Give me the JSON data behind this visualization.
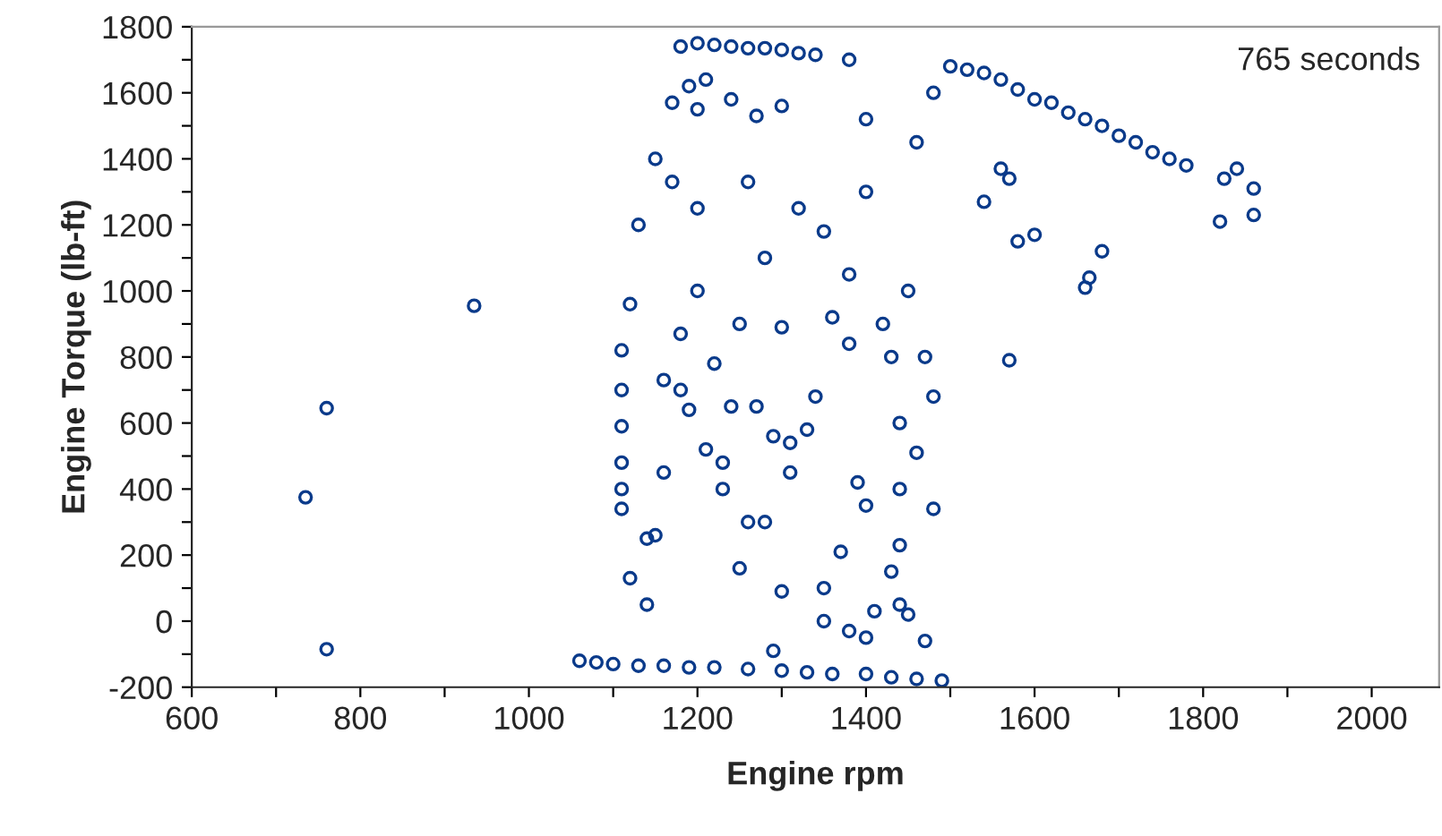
{
  "chart_data": {
    "type": "scatter",
    "xlabel": "Engine rpm",
    "ylabel": "Engine Torque (lb-ft)",
    "annotations": [
      "765 seconds"
    ],
    "xlim": [
      600,
      2080
    ],
    "ylim": [
      -200,
      1800
    ],
    "marker": "circle",
    "grid": false,
    "xticks": [
      600,
      {
        "value": 700,
        "label": null
      },
      800,
      {
        "value": 900,
        "label": null
      },
      1000,
      {
        "value": 1100,
        "label": null
      },
      1200,
      {
        "value": 1300,
        "label": null
      },
      1400,
      {
        "value": 1500,
        "label": null
      },
      1600,
      {
        "value": 1700,
        "label": null
      },
      1800,
      {
        "value": 1900,
        "label": null
      },
      2000
    ],
    "yticks": [
      -200,
      {
        "value": -100,
        "label": null
      },
      0,
      {
        "value": 100,
        "label": null
      },
      200,
      {
        "value": 300,
        "label": null
      },
      400,
      {
        "value": 500,
        "label": null
      },
      600,
      {
        "value": 700,
        "label": null
      },
      800,
      {
        "value": 900,
        "label": null
      },
      1000,
      {
        "value": 1100,
        "label": null
      },
      1200,
      {
        "value": 1300,
        "label": null
      },
      1400,
      {
        "value": 1500,
        "label": null
      },
      1600,
      {
        "value": 1700,
        "label": null
      },
      1800
    ],
    "series": [
      {
        "color": "#0a3a8a",
        "x": [
          735,
          760,
          760,
          935,
          1060,
          1080,
          1100,
          1130,
          1160,
          1190,
          1220,
          1260,
          1300,
          1330,
          1360,
          1400,
          1430,
          1460,
          1490,
          1180,
          1200,
          1220,
          1240,
          1260,
          1280,
          1300,
          1320,
          1340,
          1380,
          1170,
          1190,
          1210,
          1240,
          1270,
          1300,
          1500,
          1520,
          1540,
          1560,
          1580,
          1600,
          1620,
          1640,
          1660,
          1680,
          1700,
          1720,
          1740,
          1760,
          1780,
          1540,
          1560,
          1570,
          1570,
          1580,
          1600,
          1660,
          1665,
          1680,
          1820,
          1825,
          1860,
          1860,
          1840,
          1110,
          1110,
          1110,
          1110,
          1110,
          1110,
          1120,
          1130,
          1140,
          1150,
          1160,
          1170,
          1180,
          1190,
          1200,
          1210,
          1220,
          1230,
          1240,
          1250,
          1260,
          1270,
          1280,
          1290,
          1300,
          1310,
          1320,
          1330,
          1340,
          1350,
          1360,
          1370,
          1380,
          1390,
          1400,
          1410,
          1420,
          1430,
          1440,
          1440,
          1440,
          1450,
          1460,
          1470,
          1480,
          1480,
          1120,
          1140,
          1160,
          1180,
          1200,
          1230,
          1260,
          1280,
          1310,
          1350,
          1380,
          1400,
          1430,
          1460,
          1480,
          1150,
          1200,
          1250,
          1300,
          1350,
          1400,
          1450,
          1470,
          1440,
          1380,
          1400,
          1290
        ],
        "values": [
          375,
          645,
          -85,
          955,
          -120,
          -125,
          -130,
          -135,
          -135,
          -140,
          -140,
          -145,
          -150,
          -155,
          -160,
          -160,
          -170,
          -175,
          -180,
          1740,
          1750,
          1745,
          1740,
          1735,
          1735,
          1730,
          1720,
          1715,
          1700,
          1570,
          1620,
          1640,
          1580,
          1530,
          1560,
          1680,
          1670,
          1660,
          1640,
          1610,
          1580,
          1570,
          1540,
          1520,
          1500,
          1470,
          1450,
          1420,
          1400,
          1380,
          1270,
          1370,
          1340,
          790,
          1150,
          1170,
          1010,
          1040,
          1120,
          1210,
          1340,
          1230,
          1310,
          1370,
          820,
          700,
          590,
          480,
          400,
          340,
          960,
          1200,
          50,
          260,
          730,
          1330,
          870,
          640,
          1250,
          520,
          780,
          400,
          650,
          900,
          300,
          650,
          1100,
          560,
          890,
          450,
          1250,
          580,
          680,
          1180,
          920,
          210,
          840,
          420,
          1300,
          30,
          900,
          150,
          600,
          400,
          230,
          1000,
          510,
          800,
          340,
          680,
          130,
          250,
          450,
          700,
          1000,
          480,
          1330,
          300,
          540,
          100,
          1050,
          350,
          800,
          1450,
          1600,
          1400,
          1550,
          160,
          90,
          0,
          -50,
          20,
          -60,
          50,
          -30,
          1520,
          -90
        ]
      }
    ]
  }
}
